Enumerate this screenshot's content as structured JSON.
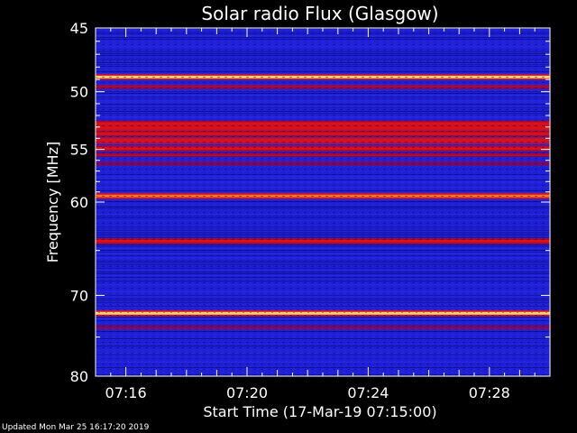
{
  "chart_data": {
    "type": "heatmap",
    "title": "Solar radio Flux (Glasgow)",
    "xlabel": "Start Time (17-Mar-19 07:15:00)",
    "ylabel": "Frequency [MHz]",
    "x_range_minutes_after_0715": [
      0,
      15.0
    ],
    "y_scale": "log",
    "ylim": [
      45,
      80
    ],
    "y_ticks_major": [
      45,
      50,
      55,
      60,
      70,
      80
    ],
    "y_ticks_minor": [
      65,
      75
    ],
    "x_ticks_major": [
      {
        "value": 1,
        "label": "07:16"
      },
      {
        "value": 5,
        "label": "07:20"
      },
      {
        "value": 9,
        "label": "07:24"
      },
      {
        "value": 13,
        "label": "07:28"
      }
    ],
    "background_color": "#1f1fd6",
    "emission_lines": [
      {
        "freq": 48.8,
        "intensity": 1.0
      },
      {
        "freq": 49.6,
        "intensity": 0.55
      },
      {
        "freq": 52.7,
        "intensity": 0.7
      },
      {
        "freq": 53.1,
        "intensity": 0.75
      },
      {
        "freq": 53.6,
        "intensity": 0.7
      },
      {
        "freq": 54.2,
        "intensity": 0.75
      },
      {
        "freq": 54.9,
        "intensity": 0.65
      },
      {
        "freq": 55.5,
        "intensity": 0.5
      },
      {
        "freq": 56.3,
        "intensity": 0.4
      },
      {
        "freq": 59.4,
        "intensity": 0.9
      },
      {
        "freq": 64.0,
        "intensity": 0.7
      },
      {
        "freq": 72.1,
        "intensity": 0.95
      },
      {
        "freq": 73.8,
        "intensity": 0.45
      }
    ]
  },
  "footer": {
    "updated": "Updated Mon Mar 25 16:17:20 2019"
  }
}
